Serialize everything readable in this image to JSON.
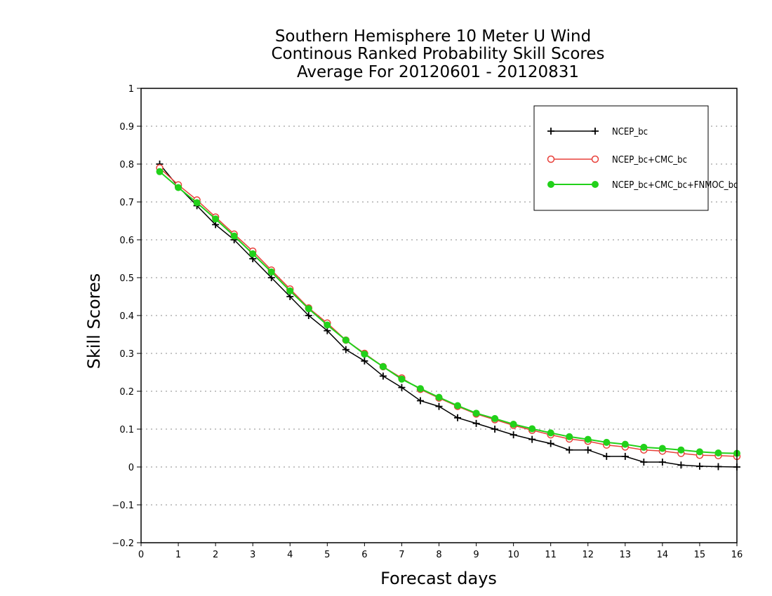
{
  "chart_data": {
    "type": "line",
    "title": [
      "Southern Hemisphere 10 Meter U Wind",
      "Continous Ranked Probability Skill Scores",
      "Average For 20120601 - 20120831"
    ],
    "xlabel": "Forecast days",
    "ylabel": "Skill Scores",
    "xlim": [
      0,
      16
    ],
    "ylim": [
      -0.2,
      1
    ],
    "xticks": [
      "0",
      "1",
      "2",
      "3",
      "4",
      "5",
      "6",
      "7",
      "8",
      "9",
      "10",
      "11",
      "12",
      "13",
      "14",
      "15",
      "16"
    ],
    "yticks": [
      "−0.2",
      "−0.1",
      "0",
      "0.1",
      "0.2",
      "0.3",
      "0.4",
      "0.5",
      "0.6",
      "0.7",
      "0.8",
      "0.9",
      "1"
    ],
    "grid": true,
    "legend_position": "top-right",
    "x": [
      0.5,
      1,
      1.5,
      2,
      2.5,
      3,
      3.5,
      4,
      4.5,
      5,
      5.5,
      6,
      6.5,
      7,
      7.5,
      8,
      8.5,
      9,
      9.5,
      10,
      10.5,
      11,
      11.5,
      12,
      12.5,
      13,
      13.5,
      14,
      14.5,
      15,
      15.5,
      16
    ],
    "series": [
      {
        "name": "NCEP_bc",
        "color": "#000000",
        "marker": "plus",
        "values": [
          0.8,
          0.74,
          0.69,
          0.64,
          0.6,
          0.55,
          0.5,
          0.45,
          0.4,
          0.36,
          0.31,
          0.28,
          0.24,
          0.21,
          0.175,
          0.16,
          0.13,
          0.115,
          0.1,
          0.085,
          0.073,
          0.062,
          0.045,
          0.045,
          0.028,
          0.028,
          0.013,
          0.013,
          0.005,
          0.002,
          0.001,
          0.0
        ]
      },
      {
        "name": "NCEP_bc+CMC_bc",
        "color": "#e8403a",
        "marker": "open-circle",
        "values": [
          0.79,
          0.745,
          0.705,
          0.66,
          0.615,
          0.57,
          0.52,
          0.47,
          0.42,
          0.38,
          0.335,
          0.3,
          0.265,
          0.235,
          0.205,
          0.182,
          0.16,
          0.14,
          0.125,
          0.11,
          0.097,
          0.085,
          0.074,
          0.068,
          0.058,
          0.053,
          0.045,
          0.042,
          0.036,
          0.031,
          0.03,
          0.028
        ]
      },
      {
        "name": "NCEP_bc+CMC_bc+FNMOC_bc",
        "color": "#22d11a",
        "marker": "filled-circle",
        "values": [
          0.78,
          0.738,
          0.698,
          0.655,
          0.61,
          0.563,
          0.515,
          0.465,
          0.418,
          0.375,
          0.335,
          0.298,
          0.265,
          0.232,
          0.207,
          0.184,
          0.162,
          0.142,
          0.128,
          0.113,
          0.101,
          0.09,
          0.08,
          0.073,
          0.065,
          0.06,
          0.052,
          0.049,
          0.045,
          0.04,
          0.037,
          0.036
        ]
      }
    ]
  }
}
